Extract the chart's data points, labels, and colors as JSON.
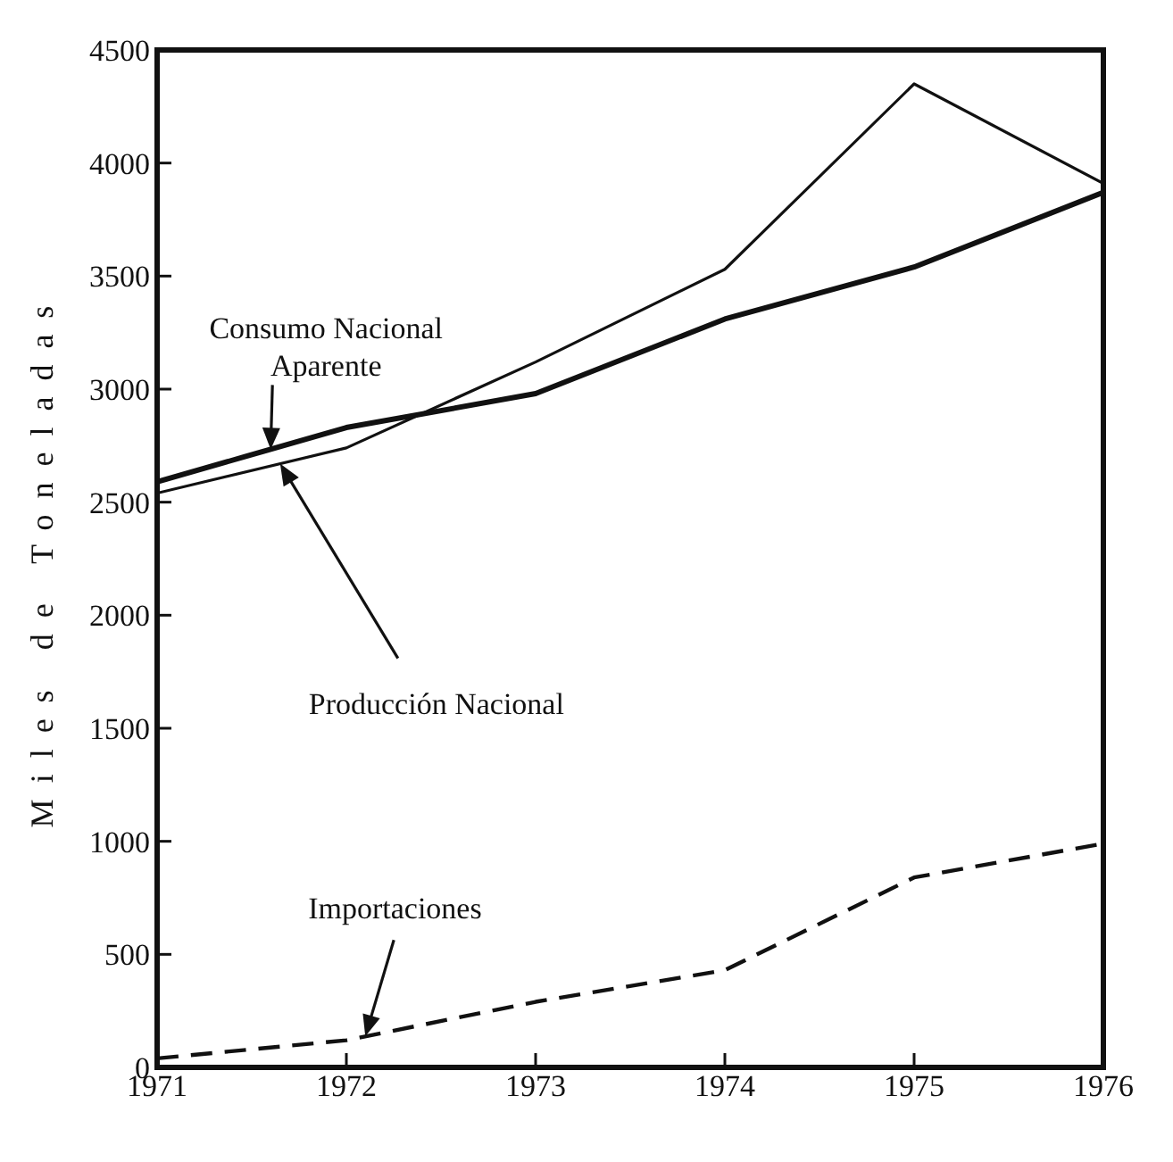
{
  "chart_data": {
    "type": "line",
    "ylabel": "Miles de Toneladas",
    "x": [
      1971,
      1972,
      1973,
      1974,
      1975,
      1976
    ],
    "xlim": [
      1971,
      1976
    ],
    "xticks": [
      1971,
      1972,
      1973,
      1974,
      1975,
      1976
    ],
    "ylim": [
      0,
      4500
    ],
    "yticks": [
      0,
      500,
      1000,
      1500,
      2000,
      2500,
      3000,
      3500,
      4000,
      4500
    ],
    "grid": false,
    "marker": "none",
    "series": [
      {
        "name": "Consumo Nacional Aparente",
        "color": "#111111",
        "values": [
          2590,
          2830,
          2980,
          3310,
          3540,
          3870
        ]
      },
      {
        "name": "Producción Nacional",
        "color": "#111111",
        "values": [
          2540,
          2740,
          3120,
          3530,
          4350,
          3910
        ]
      },
      {
        "name": "Importaciones",
        "color": "#111111",
        "values": [
          40,
          120,
          290,
          430,
          840,
          990
        ],
        "line_style": "dashed"
      }
    ]
  }
}
